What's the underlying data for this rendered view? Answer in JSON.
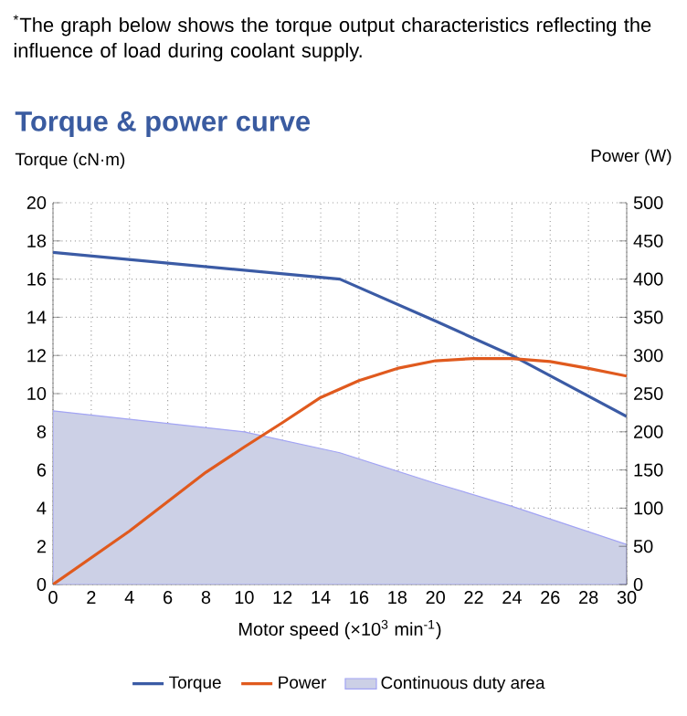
{
  "chart_data": {
    "type": "line",
    "title": "Torque & power curve",
    "annotations": [
      "$^{*}$The graph below shows the torque output characteristics reflecting the influence of load during coolant supply."
    ],
    "xlabel": "Motor speed (×10$^{3}$ min$^{-1}$)",
    "ylabel": "Torque (cN·m)",
    "y2label": "Power (W)",
    "xlim": [
      0,
      30
    ],
    "xticks": [
      0,
      2,
      4,
      6,
      8,
      10,
      12,
      14,
      16,
      18,
      20,
      22,
      24,
      26,
      28,
      30
    ],
    "ylim": [
      0,
      20
    ],
    "yticks": [
      0,
      2,
      4,
      6,
      8,
      10,
      12,
      14,
      16,
      18,
      20
    ],
    "y2lim": [
      0,
      500
    ],
    "y2ticks": [
      0,
      50,
      100,
      150,
      200,
      250,
      300,
      350,
      400,
      450,
      500
    ],
    "grid": true,
    "legend": "bottom",
    "series": [
      {
        "name": "Torque",
        "color": "#3b5ba5",
        "x": [
          0,
          15,
          20,
          24,
          30
        ],
        "values": [
          17.4,
          16,
          13.8,
          12,
          8.8
        ]
      },
      {
        "name": "Power",
        "axis": "y2",
        "color": "#e05a1e",
        "x": [
          0,
          4,
          8,
          10,
          12,
          14,
          15,
          16,
          18,
          20,
          22,
          24,
          26,
          28,
          30
        ],
        "values": [
          0,
          70,
          147,
          180,
          212,
          245,
          256,
          267,
          283,
          293,
          296,
          296,
          292,
          283,
          273
        ]
      },
      {
        "name": "Continuous duty area",
        "type": "area",
        "color": "#ccd0e6",
        "x": [
          0,
          10,
          15,
          20,
          24,
          30
        ],
        "values": [
          9.1,
          8,
          6.9,
          5.3,
          4.1,
          2.1
        ]
      }
    ]
  }
}
